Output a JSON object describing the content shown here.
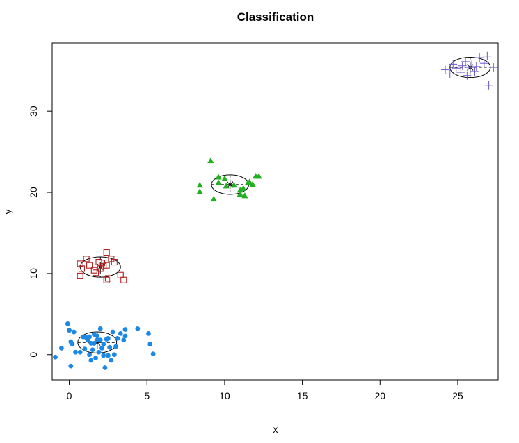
{
  "chart_data": {
    "type": "scatter",
    "title": "Classification",
    "xlabel": "x",
    "ylabel": "y",
    "xlim": [
      -1.1,
      27.6
    ],
    "ylim": [
      -3.1,
      38.4
    ],
    "xticks": [
      0,
      5,
      10,
      15,
      20,
      25
    ],
    "yticks": [
      0,
      10,
      20,
      30
    ],
    "grid": false,
    "legend": "none",
    "series": [
      {
        "marker": "filled-circle",
        "color": "#1E88E5",
        "points": [
          [
            -0.9,
            -0.3
          ],
          [
            -0.5,
            0.8
          ],
          [
            -0.1,
            3.8
          ],
          [
            0.0,
            3.0
          ],
          [
            0.1,
            1.6
          ],
          [
            0.2,
            1.3
          ],
          [
            0.3,
            2.8
          ],
          [
            0.4,
            0.3
          ],
          [
            0.1,
            -1.4
          ],
          [
            0.7,
            0.3
          ],
          [
            0.9,
            2.2
          ],
          [
            1.1,
            2.1
          ],
          [
            1.2,
            1.8
          ],
          [
            1.3,
            2.2
          ],
          [
            1.4,
            1.4
          ],
          [
            1.5,
            0.6
          ],
          [
            1.3,
            0.0
          ],
          [
            1.4,
            -0.7
          ],
          [
            1.6,
            1.4
          ],
          [
            1.6,
            2.5
          ],
          [
            1.8,
            1.8
          ],
          [
            1.8,
            2.3
          ],
          [
            1.9,
            0.3
          ],
          [
            2.0,
            1.8
          ],
          [
            2.0,
            3.2
          ],
          [
            2.1,
            0.8
          ],
          [
            2.2,
            1.3
          ],
          [
            2.2,
            -0.1
          ],
          [
            2.3,
            -1.6
          ],
          [
            2.4,
            1.9
          ],
          [
            2.5,
            -0.1
          ],
          [
            2.6,
            0.9
          ],
          [
            2.7,
            -0.7
          ],
          [
            2.8,
            2.8
          ],
          [
            2.9,
            0.0
          ],
          [
            3.0,
            1.0
          ],
          [
            3.1,
            2.0
          ],
          [
            3.3,
            2.6
          ],
          [
            3.5,
            1.8
          ],
          [
            3.6,
            3.1
          ],
          [
            3.6,
            2.3
          ],
          [
            4.4,
            3.2
          ],
          [
            5.1,
            2.6
          ],
          [
            5.2,
            1.3
          ],
          [
            5.4,
            0.1
          ],
          [
            1.0,
            0.7
          ],
          [
            2.5,
            2.0
          ],
          [
            1.7,
            -0.4
          ]
        ],
        "ellipse": {
          "cx": 1.8,
          "cy": 1.5,
          "rx": 1.25,
          "ry": 1.3
        },
        "center": [
          1.8,
          1.5
        ]
      },
      {
        "marker": "open-square",
        "color": "#B22222",
        "points": [
          [
            0.7,
            11.2
          ],
          [
            0.7,
            9.7
          ],
          [
            0.8,
            10.6
          ],
          [
            1.1,
            11.8
          ],
          [
            1.3,
            11.0
          ],
          [
            1.6,
            10.4
          ],
          [
            1.9,
            11.4
          ],
          [
            2.0,
            10.6
          ],
          [
            2.1,
            11.3
          ],
          [
            2.4,
            12.6
          ],
          [
            2.4,
            9.2
          ],
          [
            2.5,
            9.4
          ],
          [
            2.7,
            11.8
          ],
          [
            2.9,
            11.4
          ],
          [
            3.3,
            9.8
          ],
          [
            3.5,
            9.2
          ],
          [
            1.7,
            10.1
          ],
          [
            2.2,
            10.9
          ],
          [
            2.4,
            11.0
          ]
        ],
        "ellipse": {
          "cx": 2.0,
          "cy": 10.8,
          "rx": 1.3,
          "ry": 1.25
        },
        "center": [
          2.0,
          10.8
        ]
      },
      {
        "marker": "filled-triangle",
        "color": "#22B022",
        "points": [
          [
            8.4,
            20.9
          ],
          [
            8.4,
            20.1
          ],
          [
            9.1,
            23.9
          ],
          [
            9.3,
            19.2
          ],
          [
            9.6,
            21.2
          ],
          [
            9.6,
            21.9
          ],
          [
            10.0,
            21.7
          ],
          [
            10.1,
            20.8
          ],
          [
            10.6,
            20.9
          ],
          [
            11.0,
            20.3
          ],
          [
            11.0,
            19.8
          ],
          [
            11.2,
            20.5
          ],
          [
            11.3,
            19.6
          ],
          [
            11.5,
            21.2
          ],
          [
            11.6,
            21.3
          ],
          [
            11.8,
            21.0
          ],
          [
            12.0,
            22.0
          ],
          [
            12.2,
            22.0
          ]
        ],
        "ellipse": {
          "cx": 10.35,
          "cy": 20.95,
          "rx": 1.2,
          "ry": 1.2
        },
        "center": [
          10.35,
          20.95
        ]
      },
      {
        "marker": "plus",
        "color": "#6A5ACD",
        "points": [
          [
            24.2,
            35.1
          ],
          [
            24.5,
            34.6
          ],
          [
            24.7,
            35.8
          ],
          [
            24.9,
            35.3
          ],
          [
            25.3,
            35.6
          ],
          [
            25.5,
            36.1
          ],
          [
            25.6,
            34.4
          ],
          [
            25.8,
            35.4
          ],
          [
            25.9,
            35.7
          ],
          [
            26.1,
            34.9
          ],
          [
            26.4,
            36.6
          ],
          [
            26.7,
            35.9
          ],
          [
            26.9,
            36.8
          ],
          [
            27.0,
            33.2
          ],
          [
            27.3,
            35.4
          ],
          [
            25.2,
            34.8
          ],
          [
            26.2,
            35.5
          ]
        ],
        "ellipse": {
          "cx": 25.8,
          "cy": 35.4,
          "rx": 1.3,
          "ry": 1.25
        },
        "center": [
          25.8,
          35.4
        ]
      }
    ]
  }
}
